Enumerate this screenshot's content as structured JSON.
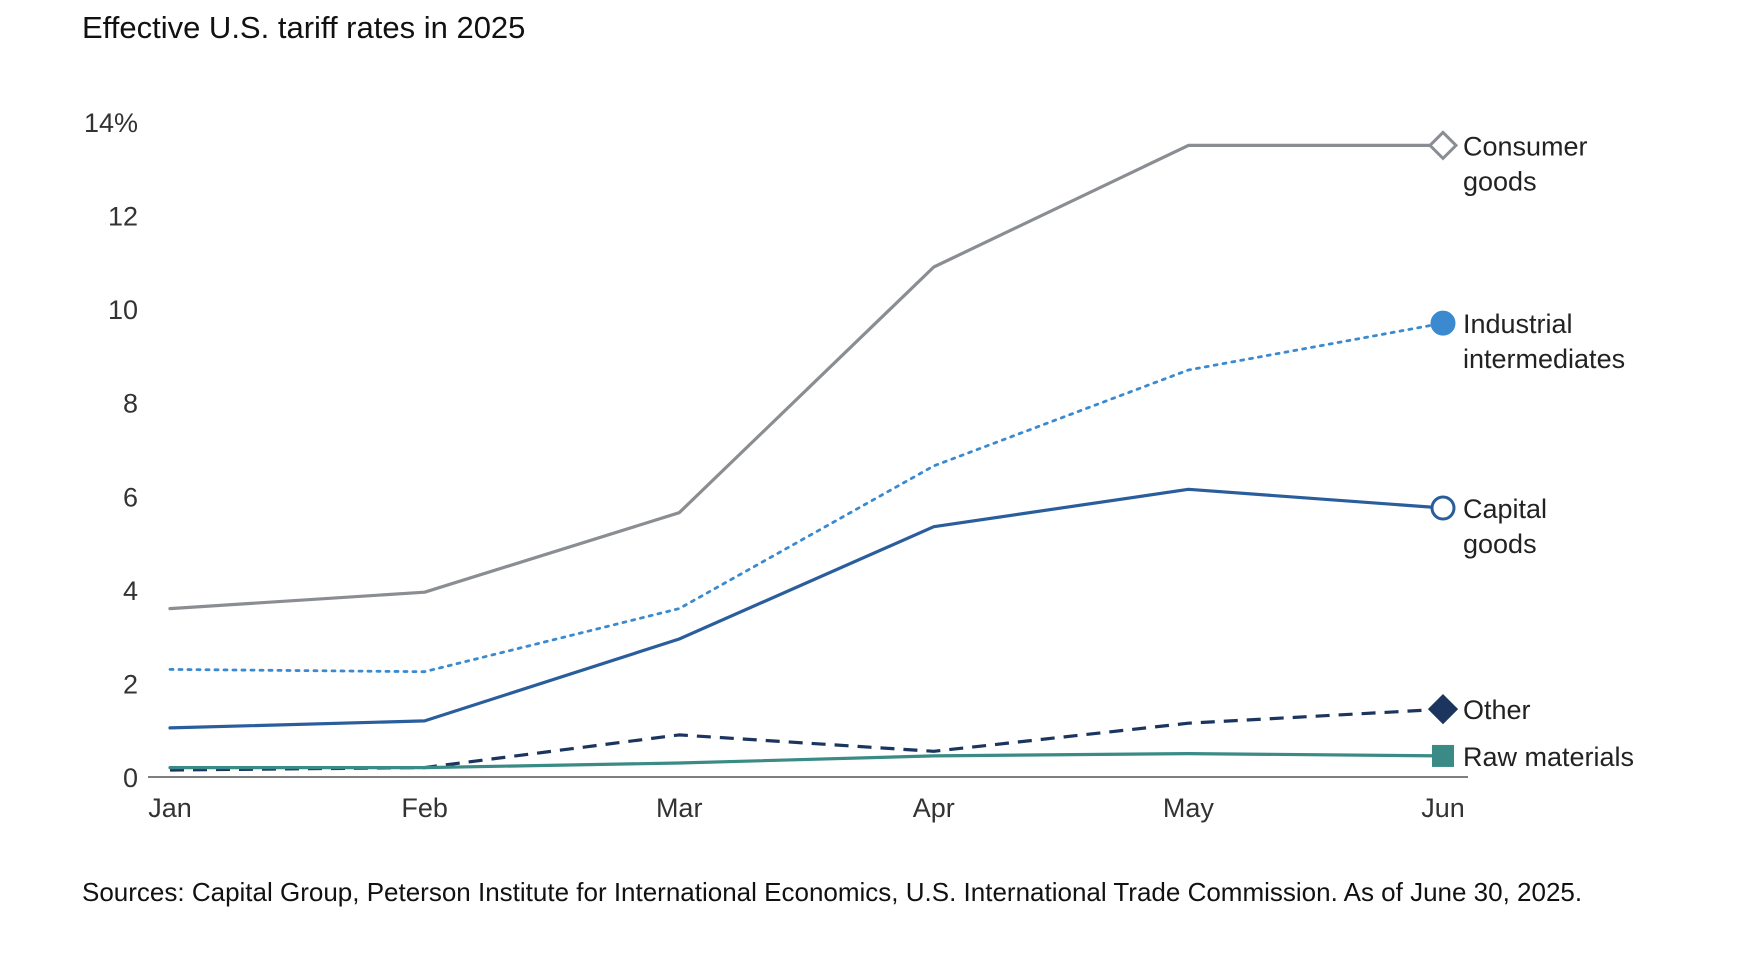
{
  "title": "Effective U.S. tariff rates in 2025",
  "source": "Sources: Capital Group, Peterson Institute for International Economics, U.S. International Trade Commission. As of June 30, 2025.",
  "chart_data": {
    "type": "line",
    "title": "Effective U.S. tariff rates in 2025",
    "categories": [
      "Jan",
      "Feb",
      "Mar",
      "Apr",
      "May",
      "Jun"
    ],
    "ylim": [
      0,
      14
    ],
    "y_ticks": [
      "0",
      "2",
      "4",
      "6",
      "8",
      "10",
      "12",
      "14%"
    ],
    "grid": false,
    "legend": "direct labels at line ends (right)",
    "series": [
      {
        "name": "Consumer goods",
        "label_lines": [
          "Consumer",
          "goods"
        ],
        "values": [
          3.6,
          3.95,
          5.65,
          10.9,
          13.5,
          13.5
        ],
        "color": "#8a8d91",
        "dash": "solid",
        "marker": "open-diamond"
      },
      {
        "name": "Industrial intermediates",
        "label_lines": [
          "Industrial",
          "intermediates"
        ],
        "values": [
          2.3,
          2.25,
          3.6,
          6.65,
          8.7,
          9.7
        ],
        "color": "#3b8ad0",
        "dash": "dotted",
        "marker": "filled-circle"
      },
      {
        "name": "Capital goods",
        "label_lines": [
          "Capital",
          "goods"
        ],
        "values": [
          1.05,
          1.2,
          2.95,
          5.35,
          6.15,
          5.75
        ],
        "color": "#2a5d9c",
        "dash": "solid",
        "marker": "open-circle"
      },
      {
        "name": "Other",
        "label_lines": [
          "Other"
        ],
        "values": [
          0.15,
          0.2,
          0.9,
          0.55,
          1.15,
          1.45
        ],
        "color": "#1b355e",
        "dash": "dashed",
        "marker": "filled-diamond"
      },
      {
        "name": "Raw materials",
        "label_lines": [
          "Raw materials"
        ],
        "values": [
          0.2,
          0.2,
          0.3,
          0.45,
          0.5,
          0.45
        ],
        "color": "#3a8a86",
        "dash": "solid",
        "marker": "filled-square"
      }
    ]
  }
}
